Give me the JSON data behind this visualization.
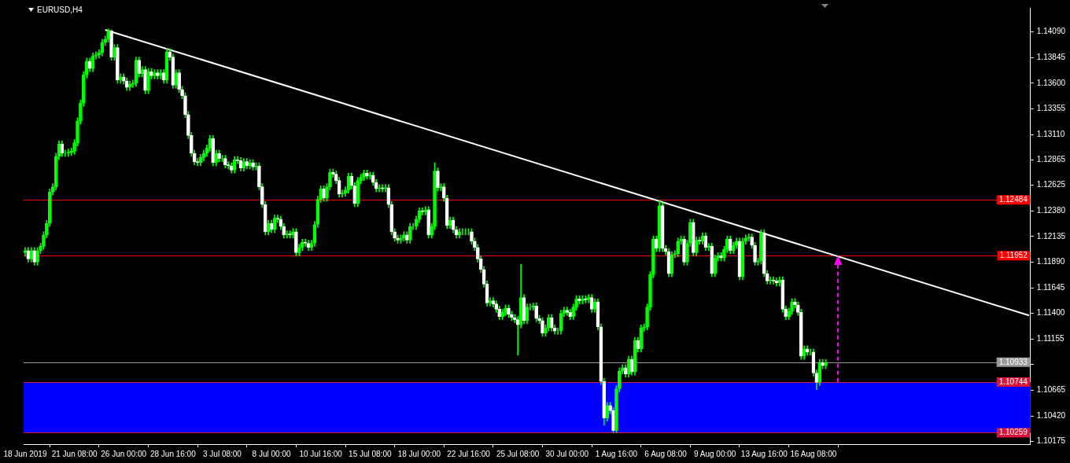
{
  "chart_data": {
    "type": "candlestick",
    "title": "EURUSD,H4",
    "color": "#00ff00",
    "categories": [
      "18 Jun 2019",
      null,
      null,
      null,
      null,
      null,
      null,
      null,
      null,
      null,
      null,
      null,
      null,
      null,
      null,
      null,
      "21 Jun 08:00",
      null,
      null,
      null,
      null,
      null,
      null,
      null,
      null,
      null,
      null,
      null,
      null,
      null,
      null,
      null,
      "26 Jun 00:00",
      null,
      null,
      null,
      null,
      null,
      null,
      null,
      null,
      null,
      null,
      null,
      null,
      null,
      null,
      null,
      "28 Jun 16:00",
      null,
      null,
      null,
      null,
      null,
      null,
      null,
      null,
      null,
      null,
      null,
      null,
      null,
      null,
      null,
      "3 Jul 08:00",
      null,
      null,
      null,
      null,
      null,
      null,
      null,
      null,
      null,
      null,
      null,
      null,
      null,
      null,
      null,
      "8 Jul 00:00",
      null,
      null,
      null,
      null,
      null,
      null,
      null,
      null,
      null,
      null,
      null,
      null,
      null,
      null,
      null,
      "10 Jul 16:00",
      null,
      null,
      null,
      null,
      null,
      null,
      null,
      null,
      null,
      null,
      null,
      null,
      null,
      null,
      null,
      "15 Jul 08:00",
      null,
      null,
      null,
      null,
      null,
      null,
      null,
      null,
      null,
      null,
      null,
      null,
      null,
      null,
      null,
      "18 Jul 00:00",
      null,
      null,
      null,
      null,
      null,
      null,
      null,
      null,
      null,
      null,
      null,
      null,
      null,
      null,
      null,
      "22 Jul 16:00",
      null,
      null,
      null,
      null,
      null,
      null,
      null,
      null,
      null,
      null,
      null,
      null,
      null,
      null,
      null,
      "25 Jul 08:00",
      null,
      null,
      null,
      null,
      null,
      null,
      null,
      null,
      null,
      null,
      null,
      null,
      null,
      null,
      null,
      "30 Jul 00:00",
      null,
      null,
      null,
      null,
      null,
      null,
      null,
      null,
      null,
      null,
      null,
      null,
      null,
      null,
      null,
      "1 Aug 16:00",
      null,
      null,
      null,
      null,
      null,
      null,
      null,
      null,
      null,
      null,
      null,
      null,
      null,
      null,
      null,
      "6 Aug 08:00",
      null,
      null,
      null,
      null,
      null,
      null,
      null,
      null,
      null,
      null,
      null,
      null,
      null,
      null,
      null,
      "9 Aug 00:00",
      null,
      null,
      null,
      null,
      null,
      null,
      null,
      null,
      null,
      null,
      null,
      null,
      null,
      null,
      null,
      "13 Aug 16:00",
      null,
      null,
      null,
      null,
      null,
      null,
      null,
      null,
      null,
      null,
      null,
      null,
      null,
      null,
      null,
      "16 Aug 08:00",
      null,
      null,
      null,
      null,
      null,
      null,
      null,
      null,
      null,
      null,
      null,
      null,
      null,
      null,
      null,
      null,
      null,
      null,
      null,
      null,
      null,
      null,
      null,
      null,
      null,
      null,
      null,
      null,
      null,
      null,
      null,
      null,
      null,
      null,
      null,
      null,
      null,
      null,
      null,
      null,
      null,
      null,
      null,
      null,
      null,
      null,
      null,
      null,
      null,
      null,
      null,
      null,
      null,
      null,
      null,
      null,
      null,
      null,
      null,
      null,
      null,
      null,
      null,
      null,
      null,
      null,
      null,
      null,
      null,
      null
    ],
    "ohlc": [
      [
        1.1198,
        1.1203,
        1.1195,
        1.12
      ],
      [
        1.12,
        1.1203,
        1.1189,
        1.1192
      ],
      [
        1.1192,
        1.1203,
        1.1189,
        1.12
      ],
      [
        1.12,
        1.1203,
        1.1186,
        1.1189
      ],
      [
        1.1189,
        1.1203,
        1.1186,
        1.12
      ],
      [
        1.12,
        1.1207,
        1.1197,
        1.1204
      ],
      [
        1.1204,
        1.1218,
        1.1201,
        1.1215
      ],
      [
        1.1215,
        1.1229,
        1.1212,
        1.1226
      ],
      [
        1.1226,
        1.1259,
        1.1223,
        1.1256
      ],
      [
        1.1256,
        1.1264,
        1.1253,
        1.1261
      ],
      [
        1.1261,
        1.1293,
        1.1258,
        1.129
      ],
      [
        1.129,
        1.1305,
        1.1287,
        1.1302
      ],
      [
        1.1302,
        1.1305,
        1.129,
        1.1293
      ],
      [
        1.1293,
        1.1296,
        1.129,
        1.1293
      ],
      [
        1.1293,
        1.1297,
        1.129,
        1.1294
      ],
      [
        1.1294,
        1.1298,
        1.1291,
        1.1295
      ],
      [
        1.1295,
        1.1306,
        1.1292,
        1.1303
      ],
      [
        1.1303,
        1.1327,
        1.13,
        1.1324
      ],
      [
        1.1324,
        1.1344,
        1.1321,
        1.1341
      ],
      [
        1.1341,
        1.1371,
        1.1338,
        1.1368
      ],
      [
        1.1368,
        1.1384,
        1.1365,
        1.1381
      ],
      [
        1.1381,
        1.1384,
        1.1371,
        1.1374
      ],
      [
        1.1374,
        1.1389,
        1.1371,
        1.1386
      ],
      [
        1.1386,
        1.139,
        1.1383,
        1.1387
      ],
      [
        1.1387,
        1.1392,
        1.1384,
        1.1389
      ],
      [
        1.1389,
        1.1402,
        1.1386,
        1.1399
      ],
      [
        1.1399,
        1.1405,
        1.1396,
        1.1402
      ],
      [
        1.1402,
        1.1412,
        1.1399,
        1.141
      ],
      [
        1.141,
        1.1411,
        1.1382,
        1.1385
      ],
      [
        1.1385,
        1.1397,
        1.1382,
        1.1394
      ],
      [
        1.1394,
        1.1397,
        1.136,
        1.1363
      ],
      [
        1.1363,
        1.1369,
        1.136,
        1.1366
      ],
      [
        1.1366,
        1.1369,
        1.1359,
        1.1362
      ],
      [
        1.1362,
        1.1365,
        1.1353,
        1.1356
      ],
      [
        1.1356,
        1.1362,
        1.1353,
        1.1359
      ],
      [
        1.1359,
        1.1363,
        1.1356,
        1.136
      ],
      [
        1.136,
        1.1385,
        1.1357,
        1.1382
      ],
      [
        1.1382,
        1.1385,
        1.1366,
        1.1369
      ],
      [
        1.1369,
        1.1376,
        1.1366,
        1.1373
      ],
      [
        1.1373,
        1.1376,
        1.135,
        1.1353
      ],
      [
        1.1353,
        1.1374,
        1.135,
        1.1371
      ],
      [
        1.1371,
        1.1374,
        1.1364,
        1.1367
      ],
      [
        1.1367,
        1.1373,
        1.1364,
        1.137
      ],
      [
        1.137,
        1.1373,
        1.1364,
        1.1367
      ],
      [
        1.1367,
        1.1373,
        1.1364,
        1.137
      ],
      [
        1.137,
        1.1373,
        1.136,
        1.1363
      ],
      [
        1.1363,
        1.1393,
        1.136,
        1.139
      ],
      [
        1.139,
        1.1393,
        1.1382,
        1.1385
      ],
      [
        1.1385,
        1.1388,
        1.1355,
        1.1358
      ],
      [
        1.1358,
        1.1373,
        1.1355,
        1.137
      ],
      [
        1.137,
        1.1373,
        1.1351,
        1.1354
      ],
      [
        1.1354,
        1.1357,
        1.1345,
        1.1348
      ],
      [
        1.1348,
        1.1351,
        1.1327,
        1.133
      ],
      [
        1.133,
        1.1333,
        1.1307,
        1.131
      ],
      [
        1.131,
        1.1313,
        1.129,
        1.1293
      ],
      [
        1.1293,
        1.1296,
        1.1282,
        1.1285
      ],
      [
        1.1285,
        1.1288,
        1.1281,
        1.1284
      ],
      [
        1.1284,
        1.1292,
        1.1281,
        1.1289
      ],
      [
        1.1289,
        1.1296,
        1.1286,
        1.1293
      ],
      [
        1.1293,
        1.1301,
        1.129,
        1.1298
      ],
      [
        1.1298,
        1.131,
        1.1295,
        1.1307
      ],
      [
        1.1307,
        1.131,
        1.1281,
        1.1284
      ],
      [
        1.1284,
        1.1296,
        1.1281,
        1.1293
      ],
      [
        1.1293,
        1.1296,
        1.1285,
        1.1288
      ],
      [
        1.1288,
        1.1291,
        1.1285,
        1.1288
      ],
      [
        1.1288,
        1.1291,
        1.1279,
        1.1282
      ],
      [
        1.1282,
        1.1285,
        1.1278,
        1.1281
      ],
      [
        1.1281,
        1.1284,
        1.1274,
        1.1277
      ],
      [
        1.1277,
        1.129,
        1.1274,
        1.1287
      ],
      [
        1.1287,
        1.129,
        1.1283,
        1.1286
      ],
      [
        1.1286,
        1.1289,
        1.1276,
        1.1279
      ],
      [
        1.1279,
        1.1288,
        1.1276,
        1.1285
      ],
      [
        1.1285,
        1.1288,
        1.1278,
        1.1281
      ],
      [
        1.1281,
        1.1287,
        1.1278,
        1.1284
      ],
      [
        1.1284,
        1.1287,
        1.1277,
        1.128
      ],
      [
        1.128,
        1.1284,
        1.1277,
        1.1281
      ],
      [
        1.1281,
        1.1284,
        1.1258,
        1.1261
      ],
      [
        1.1261,
        1.1264,
        1.1241,
        1.1244
      ],
      [
        1.1244,
        1.1247,
        1.1215,
        1.1218
      ],
      [
        1.1218,
        1.1229,
        1.1215,
        1.1226
      ],
      [
        1.1226,
        1.1229,
        1.1217,
        1.122
      ],
      [
        1.122,
        1.1234,
        1.1217,
        1.1231
      ],
      [
        1.1231,
        1.1234,
        1.1227,
        1.123
      ],
      [
        1.123,
        1.1233,
        1.122,
        1.1223
      ],
      [
        1.1223,
        1.1226,
        1.1212,
        1.1215
      ],
      [
        1.1215,
        1.1219,
        1.1212,
        1.1216
      ],
      [
        1.1216,
        1.1219,
        1.1212,
        1.1215
      ],
      [
        1.1215,
        1.1221,
        1.1212,
        1.1218
      ],
      [
        1.1218,
        1.1221,
        1.1195,
        1.1198
      ],
      [
        1.1198,
        1.1206,
        1.1195,
        1.1203
      ],
      [
        1.1203,
        1.1211,
        1.12,
        1.1208
      ],
      [
        1.1208,
        1.1211,
        1.1204,
        1.1207
      ],
      [
        1.1207,
        1.121,
        1.12,
        1.1203
      ],
      [
        1.1203,
        1.121,
        1.12,
        1.1207
      ],
      [
        1.1207,
        1.1228,
        1.1204,
        1.1225
      ],
      [
        1.1225,
        1.1252,
        1.1222,
        1.1249
      ],
      [
        1.1249,
        1.1262,
        1.1246,
        1.1259
      ],
      [
        1.1259,
        1.1262,
        1.1247,
        1.125
      ],
      [
        1.125,
        1.1264,
        1.1247,
        1.1261
      ],
      [
        1.1261,
        1.1278,
        1.1258,
        1.1275
      ],
      [
        1.1275,
        1.1278,
        1.127,
        1.1273
      ],
      [
        1.1273,
        1.1276,
        1.1264,
        1.1267
      ],
      [
        1.1267,
        1.127,
        1.1251,
        1.1254
      ],
      [
        1.1254,
        1.1258,
        1.1251,
        1.1255
      ],
      [
        1.1255,
        1.1261,
        1.1252,
        1.1258
      ],
      [
        1.1258,
        1.1274,
        1.1255,
        1.1271
      ],
      [
        1.1271,
        1.1274,
        1.1259,
        1.1262
      ],
      [
        1.1262,
        1.1265,
        1.1242,
        1.1245
      ],
      [
        1.1245,
        1.127,
        1.1242,
        1.1267
      ],
      [
        1.1267,
        1.1273,
        1.1264,
        1.127
      ],
      [
        1.127,
        1.1277,
        1.1267,
        1.1274
      ],
      [
        1.1274,
        1.1277,
        1.1268,
        1.1271
      ],
      [
        1.1271,
        1.1275,
        1.1268,
        1.1272
      ],
      [
        1.1272,
        1.1275,
        1.1262,
        1.1265
      ],
      [
        1.1265,
        1.1268,
        1.1256,
        1.1259
      ],
      [
        1.1259,
        1.1263,
        1.1256,
        1.126
      ],
      [
        1.126,
        1.1263,
        1.1256,
        1.1259
      ],
      [
        1.1259,
        1.1263,
        1.1256,
        1.126
      ],
      [
        1.126,
        1.1263,
        1.1241,
        1.1244
      ],
      [
        1.1244,
        1.1247,
        1.1215,
        1.1218
      ],
      [
        1.1218,
        1.1221,
        1.1209,
        1.1212
      ],
      [
        1.1212,
        1.1215,
        1.1207,
        1.121
      ],
      [
        1.121,
        1.1215,
        1.1207,
        1.1212
      ],
      [
        1.1212,
        1.1218,
        1.1209,
        1.1215
      ],
      [
        1.1215,
        1.1218,
        1.1207,
        1.121
      ],
      [
        1.121,
        1.1226,
        1.1207,
        1.1223
      ],
      [
        1.1223,
        1.1226,
        1.122,
        1.1223
      ],
      [
        1.1223,
        1.1233,
        1.122,
        1.123
      ],
      [
        1.123,
        1.1241,
        1.1227,
        1.1238
      ],
      [
        1.1238,
        1.1241,
        1.1234,
        1.1237
      ],
      [
        1.1237,
        1.1242,
        1.1234,
        1.1239
      ],
      [
        1.1239,
        1.1242,
        1.1212,
        1.1215
      ],
      [
        1.1215,
        1.1226,
        1.1212,
        1.1223
      ],
      [
        1.1223,
        1.1284,
        1.122,
        1.1276
      ],
      [
        1.1276,
        1.1279,
        1.1257,
        1.126
      ],
      [
        1.126,
        1.1264,
        1.1257,
        1.1261
      ],
      [
        1.1261,
        1.1264,
        1.1247,
        1.125
      ],
      [
        1.125,
        1.1253,
        1.1221,
        1.1224
      ],
      [
        1.1224,
        1.1232,
        1.1221,
        1.1229
      ],
      [
        1.1229,
        1.1232,
        1.1217,
        1.122
      ],
      [
        1.122,
        1.1223,
        1.1212,
        1.1215
      ],
      [
        1.1215,
        1.1221,
        1.1212,
        1.1218
      ],
      [
        1.1218,
        1.1221,
        1.1215,
        1.1218
      ],
      [
        1.1218,
        1.1221,
        1.1215,
        1.1218
      ],
      [
        1.1218,
        1.1221,
        1.1215,
        1.1218
      ],
      [
        1.1218,
        1.1221,
        1.1206,
        1.1209
      ],
      [
        1.1209,
        1.1212,
        1.12,
        1.1203
      ],
      [
        1.1203,
        1.1206,
        1.1189,
        1.1192
      ],
      [
        1.1192,
        1.1195,
        1.1179,
        1.1182
      ],
      [
        1.1182,
        1.1185,
        1.1165,
        1.1168
      ],
      [
        1.1168,
        1.1171,
        1.1147,
        1.115
      ],
      [
        1.115,
        1.1155,
        1.1147,
        1.1152
      ],
      [
        1.1152,
        1.1155,
        1.1146,
        1.1149
      ],
      [
        1.1149,
        1.1152,
        1.1141,
        1.1144
      ],
      [
        1.1144,
        1.1147,
        1.1134,
        1.1137
      ],
      [
        1.1137,
        1.1144,
        1.1134,
        1.1141
      ],
      [
        1.1141,
        1.1148,
        1.1138,
        1.1145
      ],
      [
        1.1145,
        1.1148,
        1.1136,
        1.1139
      ],
      [
        1.1139,
        1.1142,
        1.1133,
        1.1136
      ],
      [
        1.1136,
        1.1139,
        1.1131,
        1.1134
      ],
      [
        1.1134,
        1.1137,
        1.11,
        1.1129
      ],
      [
        1.1129,
        1.1187,
        1.1126,
        1.1155
      ],
      [
        1.1155,
        1.1158,
        1.113,
        1.1133
      ],
      [
        1.1133,
        1.1149,
        1.113,
        1.1146
      ],
      [
        1.1146,
        1.1149,
        1.1143,
        1.1146
      ],
      [
        1.1146,
        1.115,
        1.1143,
        1.1147
      ],
      [
        1.1147,
        1.115,
        1.1132,
        1.1135
      ],
      [
        1.1135,
        1.1138,
        1.113,
        1.1133
      ],
      [
        1.1133,
        1.1136,
        1.1118,
        1.1121
      ],
      [
        1.1121,
        1.1129,
        1.1118,
        1.1126
      ],
      [
        1.1126,
        1.1139,
        1.1123,
        1.1136
      ],
      [
        1.1136,
        1.1139,
        1.1123,
        1.1126
      ],
      [
        1.1126,
        1.1129,
        1.112,
        1.1123
      ],
      [
        1.1123,
        1.1126,
        1.112,
        1.1123
      ],
      [
        1.1123,
        1.1143,
        1.112,
        1.114
      ],
      [
        1.114,
        1.1146,
        1.1137,
        1.1143
      ],
      [
        1.1143,
        1.1146,
        1.1138,
        1.1141
      ],
      [
        1.1141,
        1.1144,
        1.1134,
        1.1137
      ],
      [
        1.1137,
        1.1149,
        1.1134,
        1.1146
      ],
      [
        1.1146,
        1.1157,
        1.1143,
        1.1154
      ],
      [
        1.1154,
        1.1157,
        1.1149,
        1.1152
      ],
      [
        1.1152,
        1.1157,
        1.1149,
        1.1154
      ],
      [
        1.1154,
        1.1157,
        1.115,
        1.1153
      ],
      [
        1.1153,
        1.1158,
        1.115,
        1.1155
      ],
      [
        1.1155,
        1.1158,
        1.1141,
        1.1144
      ],
      [
        1.1144,
        1.1154,
        1.1141,
        1.1151
      ],
      [
        1.1151,
        1.1154,
        1.1124,
        1.1127
      ],
      [
        1.1127,
        1.113,
        1.1072,
        1.1075
      ],
      [
        1.1075,
        1.1078,
        1.1033,
        1.104
      ],
      [
        1.104,
        1.1055,
        1.1037,
        1.1052
      ],
      [
        1.1052,
        1.1055,
        1.1044,
        1.1047
      ],
      [
        1.1047,
        1.105,
        1.1026,
        1.1028
      ],
      [
        1.1028,
        1.1071,
        1.1026,
        1.1068
      ],
      [
        1.1068,
        1.1088,
        1.1065,
        1.1085
      ],
      [
        1.1085,
        1.1091,
        1.1082,
        1.1088
      ],
      [
        1.1088,
        1.1091,
        1.1079,
        1.1082
      ],
      [
        1.1082,
        1.1099,
        1.1079,
        1.1096
      ],
      [
        1.1096,
        1.1099,
        1.1081,
        1.1084
      ],
      [
        1.1084,
        1.1117,
        1.1081,
        1.1114
      ],
      [
        1.1114,
        1.1117,
        1.1103,
        1.1106
      ],
      [
        1.1106,
        1.1129,
        1.1103,
        1.1126
      ],
      [
        1.1126,
        1.113,
        1.1123,
        1.1127
      ],
      [
        1.1127,
        1.1149,
        1.1124,
        1.1146
      ],
      [
        1.1146,
        1.118,
        1.1143,
        1.1177
      ],
      [
        1.1177,
        1.1214,
        1.1174,
        1.1211
      ],
      [
        1.1211,
        1.1214,
        1.1199,
        1.1202
      ],
      [
        1.1202,
        1.1248,
        1.1199,
        1.1243
      ],
      [
        1.1243,
        1.1246,
        1.1199,
        1.1202
      ],
      [
        1.1202,
        1.1205,
        1.1196,
        1.1199
      ],
      [
        1.1199,
        1.1202,
        1.1175,
        1.1178
      ],
      [
        1.1178,
        1.1199,
        1.1175,
        1.1196
      ],
      [
        1.1196,
        1.12,
        1.1193,
        1.1197
      ],
      [
        1.1197,
        1.1212,
        1.1194,
        1.1209
      ],
      [
        1.1209,
        1.1214,
        1.1206,
        1.1211
      ],
      [
        1.1211,
        1.1214,
        1.1186,
        1.1189
      ],
      [
        1.1189,
        1.121,
        1.1186,
        1.1207
      ],
      [
        1.1207,
        1.123,
        1.1204,
        1.1227
      ],
      [
        1.1227,
        1.123,
        1.1195,
        1.1198
      ],
      [
        1.1198,
        1.1213,
        1.1195,
        1.121
      ],
      [
        1.121,
        1.1213,
        1.1206,
        1.1209
      ],
      [
        1.1209,
        1.1217,
        1.1206,
        1.1214
      ],
      [
        1.1214,
        1.1217,
        1.12,
        1.1203
      ],
      [
        1.1203,
        1.1207,
        1.12,
        1.1204
      ],
      [
        1.1204,
        1.1207,
        1.1175,
        1.1178
      ],
      [
        1.1178,
        1.1196,
        1.1175,
        1.1193
      ],
      [
        1.1193,
        1.1198,
        1.119,
        1.1195
      ],
      [
        1.1195,
        1.1198,
        1.119,
        1.1193
      ],
      [
        1.1193,
        1.1204,
        1.119,
        1.1201
      ],
      [
        1.1201,
        1.1214,
        1.1198,
        1.1211
      ],
      [
        1.1211,
        1.1214,
        1.1197,
        1.12
      ],
      [
        1.12,
        1.1208,
        1.1197,
        1.1205
      ],
      [
        1.1205,
        1.1212,
        1.1202,
        1.1209
      ],
      [
        1.1209,
        1.1212,
        1.1172,
        1.1175
      ],
      [
        1.1175,
        1.1212,
        1.1172,
        1.1209
      ],
      [
        1.1209,
        1.1215,
        1.1206,
        1.1212
      ],
      [
        1.1212,
        1.1216,
        1.1209,
        1.1213
      ],
      [
        1.1213,
        1.1216,
        1.1202,
        1.1205
      ],
      [
        1.1205,
        1.1208,
        1.1186,
        1.1189
      ],
      [
        1.1189,
        1.1193,
        1.1186,
        1.119
      ],
      [
        1.119,
        1.122,
        1.1187,
        1.1217
      ],
      [
        1.1217,
        1.122,
        1.1175,
        1.1178
      ],
      [
        1.1178,
        1.1181,
        1.1168,
        1.1171
      ],
      [
        1.1171,
        1.1175,
        1.1168,
        1.1172
      ],
      [
        1.1172,
        1.1175,
        1.1168,
        1.1171
      ],
      [
        1.1171,
        1.1174,
        1.1166,
        1.1169
      ],
      [
        1.1169,
        1.1175,
        1.1166,
        1.1172
      ],
      [
        1.1172,
        1.1175,
        1.1141,
        1.1144
      ],
      [
        1.1144,
        1.1147,
        1.1134,
        1.1137
      ],
      [
        1.1137,
        1.1145,
        1.1134,
        1.1142
      ],
      [
        1.1142,
        1.1154,
        1.1139,
        1.1151
      ],
      [
        1.1151,
        1.1154,
        1.1145,
        1.1148
      ],
      [
        1.1148,
        1.1151,
        1.1138,
        1.1141
      ],
      [
        1.1141,
        1.1144,
        1.1096,
        1.1099
      ],
      [
        1.1099,
        1.1109,
        1.1096,
        1.1106
      ],
      [
        1.1106,
        1.1109,
        1.11,
        1.1103
      ],
      [
        1.1103,
        1.1106,
        1.11,
        1.1103
      ],
      [
        1.1103,
        1.1106,
        1.108,
        1.1083
      ],
      [
        1.1083,
        1.1086,
        1.1067,
        1.1074
      ],
      [
        1.1074,
        1.1096,
        1.1071,
        1.1093
      ],
      [
        1.1093,
        1.1096,
        1.1087,
        1.109
      ],
      [
        1.109,
        1.1096,
        1.1087,
        1.1093
      ],
      null,
      null,
      null,
      null,
      null,
      null,
      null,
      null,
      null,
      null,
      null,
      null,
      null,
      null,
      null,
      null,
      null,
      null,
      null,
      null,
      null,
      null,
      null,
      null,
      null,
      null,
      null,
      null,
      null,
      null,
      null,
      null,
      null,
      null,
      null,
      null,
      null,
      null,
      null,
      null,
      null,
      null,
      null,
      null,
      null,
      null,
      null,
      null,
      null,
      null,
      null,
      null,
      null,
      null,
      null,
      null,
      null,
      null,
      null,
      null,
      null,
      null,
      null,
      null,
      null,
      null
    ],
    "colors": [
      "#00ff00",
      "#ffffff",
      "#00ff00",
      "#ffffff",
      "#00ff00",
      "#00ff00",
      "#00ff00",
      "#00ff00",
      "#00ff00",
      "#00ff00",
      "#00ff00",
      "#00ff00",
      "#ffffff",
      "#00ff00",
      "#00ff00",
      "#00ff00",
      "#00ff00",
      "#00ff00",
      "#00ff00",
      "#00ff00",
      "#00ff00",
      "#ffffff",
      "#00ff00",
      "#00ff00",
      "#00ff00",
      "#00ff00",
      "#00ff00",
      "#00ff00",
      "#ffffff",
      "#00ff00",
      "#ffffff",
      "#00ff00",
      "#ffffff",
      "#ffffff",
      "#00ff00",
      "#00ff00",
      "#00ff00",
      "#ffffff",
      "#00ff00",
      "#ffffff",
      "#00ff00",
      "#ffffff",
      "#00ff00",
      "#ffffff",
      "#00ff00",
      "#ffffff",
      "#00ff00",
      "#ffffff",
      "#ffffff",
      "#00ff00",
      "#ffffff",
      "#ffffff",
      "#ffffff",
      "#ffffff",
      "#ffffff",
      "#ffffff",
      "#ffffff",
      "#00ff00",
      "#00ff00",
      "#00ff00",
      "#00ff00",
      "#ffffff",
      "#00ff00",
      "#ffffff",
      "#00ff00",
      "#ffffff",
      "#ffffff",
      "#ffffff",
      "#00ff00",
      "#ffffff",
      "#ffffff",
      "#00ff00",
      "#ffffff",
      "#00ff00",
      "#ffffff",
      "#00ff00",
      "#ffffff",
      "#ffffff",
      "#ffffff",
      "#00ff00",
      "#ffffff",
      "#00ff00",
      "#ffffff",
      "#ffffff",
      "#ffffff",
      "#00ff00",
      "#ffffff",
      "#00ff00",
      "#ffffff",
      "#00ff00",
      "#00ff00",
      "#ffffff",
      "#ffffff",
      "#00ff00",
      "#00ff00",
      "#00ff00",
      "#00ff00",
      "#ffffff",
      "#00ff00",
      "#00ff00",
      "#ffffff",
      "#ffffff",
      "#ffffff",
      "#00ff00",
      "#00ff00",
      "#00ff00",
      "#ffffff",
      "#ffffff",
      "#00ff00",
      "#00ff00",
      "#00ff00",
      "#ffffff",
      "#00ff00",
      "#ffffff",
      "#ffffff",
      "#00ff00",
      "#ffffff",
      "#00ff00",
      "#ffffff",
      "#ffffff",
      "#ffffff",
      "#ffffff",
      "#00ff00",
      "#00ff00",
      "#ffffff",
      "#00ff00",
      "#00ff00",
      "#00ff00",
      "#00ff00",
      "#ffffff",
      "#00ff00",
      "#ffffff",
      "#00ff00",
      "#00ff00",
      "#ffffff",
      "#00ff00",
      "#ffffff",
      "#ffffff",
      "#00ff00",
      "#ffffff",
      "#ffffff",
      "#00ff00",
      "#00ff00",
      "#00ff00",
      "#00ff00",
      "#ffffff",
      "#ffffff",
      "#ffffff",
      "#ffffff",
      "#ffffff",
      "#ffffff",
      "#00ff00",
      "#ffffff",
      "#ffffff",
      "#ffffff",
      "#00ff00",
      "#00ff00",
      "#ffffff",
      "#ffffff",
      "#ffffff",
      "#ffffff",
      "#00ff00",
      "#ffffff",
      "#00ff00",
      "#00ff00",
      "#00ff00",
      "#ffffff",
      "#ffffff",
      "#ffffff",
      "#00ff00",
      "#00ff00",
      "#ffffff",
      "#ffffff",
      "#00ff00",
      "#00ff00",
      "#00ff00",
      "#ffffff",
      "#ffffff",
      "#00ff00",
      "#00ff00",
      "#ffffff",
      "#00ff00",
      "#ffffff",
      "#00ff00",
      "#ffffff",
      "#00ff00",
      "#ffffff",
      "#ffffff",
      "#ffffff",
      "#00ff00",
      "#ffffff",
      "#ffffff",
      "#00ff00",
      "#00ff00",
      "#00ff00",
      "#ffffff",
      "#00ff00",
      "#ffffff",
      "#00ff00",
      "#ffffff",
      "#00ff00",
      "#00ff00",
      "#00ff00",
      "#00ff00",
      "#00ff00",
      "#ffffff",
      "#00ff00",
      "#ffffff",
      "#ffffff",
      "#ffffff",
      "#00ff00",
      "#00ff00",
      "#00ff00",
      "#00ff00",
      "#ffffff",
      "#00ff00",
      "#00ff00",
      "#ffffff",
      "#00ff00",
      "#ffffff",
      "#00ff00",
      "#ffffff",
      "#00ff00",
      "#ffffff",
      "#00ff00",
      "#00ff00",
      "#ffffff",
      "#00ff00",
      "#00ff00",
      "#ffffff",
      "#00ff00",
      "#00ff00",
      "#ffffff",
      "#00ff00",
      "#00ff00",
      "#00ff00",
      "#ffffff",
      "#ffffff",
      "#00ff00",
      "#00ff00",
      "#ffffff",
      "#ffffff",
      "#00ff00",
      "#ffffff",
      "#ffffff",
      "#00ff00",
      "#ffffff",
      "#ffffff",
      "#00ff00",
      "#00ff00",
      "#ffffff",
      "#ffffff",
      "#ffffff",
      "#00ff00",
      "#ffffff",
      "#00ff00",
      "#ffffff",
      "#ffffff",
      "#00ff00",
      "#ffffff",
      "#00ff00",
      null,
      null,
      null,
      null,
      null,
      null,
      null,
      null,
      null,
      null,
      null,
      null,
      null,
      null,
      null,
      null,
      null,
      null,
      null,
      null,
      null,
      null,
      null,
      null,
      null,
      null,
      null,
      null,
      null,
      null,
      null,
      null,
      null,
      null,
      null,
      null,
      null,
      null,
      null,
      null,
      null,
      null,
      null,
      null,
      null,
      null,
      null,
      null,
      null,
      null,
      null,
      null,
      null,
      null,
      null,
      null,
      null,
      null,
      null,
      null,
      null,
      null,
      null,
      null,
      null,
      null
    ],
    "series": [
      {
        "type": "line",
        "color": "#ffffff",
        "values": [
          null,
          null,
          null,
          null,
          null,
          null,
          null,
          null,
          null,
          null,
          null,
          null,
          null,
          null,
          null,
          null,
          null,
          null,
          null,
          null,
          null,
          null,
          null,
          null,
          null,
          null,
          1.1411,
          null,
          null,
          null,
          null,
          null,
          null,
          null,
          null,
          null,
          null,
          null,
          null,
          null,
          null,
          null,
          null,
          null,
          null,
          null,
          null,
          null,
          null,
          null,
          null,
          null,
          null,
          null,
          null,
          null,
          null,
          null,
          null,
          null,
          null,
          null,
          null,
          null,
          null,
          null,
          null,
          null,
          null,
          null,
          null,
          null,
          null,
          null,
          null,
          null,
          null,
          null,
          null,
          null,
          null,
          null,
          null,
          null,
          null,
          null,
          null,
          null,
          null,
          null,
          null,
          null,
          null,
          null,
          null,
          null,
          null,
          null,
          null,
          null,
          null,
          null,
          null,
          null,
          null,
          null,
          null,
          null,
          null,
          null,
          null,
          null,
          null,
          null,
          null,
          null,
          null,
          null,
          null,
          null,
          null,
          null,
          null,
          null,
          null,
          null,
          null,
          null,
          null,
          null,
          null,
          null,
          null,
          null,
          null,
          null,
          null,
          null,
          null,
          null,
          null,
          null,
          null,
          null,
          null,
          null,
          null,
          null,
          null,
          null,
          null,
          null,
          null,
          null,
          null,
          null,
          null,
          null,
          null,
          null,
          null,
          null,
          null,
          null,
          null,
          null,
          null,
          null,
          null,
          null,
          null,
          null,
          null,
          null,
          null,
          null,
          null,
          null,
          null,
          null,
          null,
          null,
          null,
          null,
          null,
          null,
          null,
          null,
          null,
          null,
          null,
          null,
          null,
          null,
          null,
          null,
          null,
          null,
          null,
          null,
          null,
          null,
          null,
          null,
          null,
          null,
          null,
          null,
          null,
          null,
          null,
          null,
          null,
          null,
          null,
          null,
          null,
          null,
          null,
          null,
          null,
          null,
          null,
          null,
          null,
          null,
          null,
          null,
          null,
          null,
          null,
          null,
          null,
          null,
          null,
          null,
          null,
          null,
          null,
          null,
          null,
          null,
          null,
          null,
          null,
          null,
          null,
          null,
          null,
          null,
          null,
          null,
          null,
          null,
          null,
          null,
          null,
          null,
          null,
          null,
          null,
          null,
          null,
          null,
          null,
          null,
          null,
          null,
          null,
          null,
          null,
          null,
          null,
          null,
          null,
          null,
          null,
          null,
          null,
          null,
          null,
          null,
          null,
          null,
          null,
          null,
          null,
          null,
          null,
          null,
          null,
          null,
          null,
          null,
          null,
          null,
          null,
          null,
          null,
          null,
          null,
          null,
          null,
          null,
          null,
          null,
          null,
          null,
          null,
          null,
          null,
          null,
          null,
          null,
          null,
          null,
          null,
          null,
          null,
          null,
          null,
          null,
          null,
          null,
          null,
          null,
          1.1138
        ]
      }
    ],
    "ylim": [
      1.1015,
      1.1432
    ],
    "yticks": [
      {
        "value": 1.1409,
        "label": "1.14090"
      },
      {
        "value": 1.13845,
        "label": "1.13845"
      },
      {
        "value": 1.136,
        "label": "1.13600"
      },
      {
        "value": 1.13355,
        "label": "1.13355"
      },
      {
        "value": 1.1311,
        "label": "1.13110"
      },
      {
        "value": 1.12865,
        "label": "1.12865"
      },
      {
        "value": 1.12625,
        "label": "1.12625"
      },
      {
        "value": 1.1238,
        "label": "1.12380"
      },
      {
        "value": 1.12135,
        "label": "1.12135"
      },
      {
        "value": 1.1189,
        "label": "1.11890"
      },
      {
        "value": 1.11645,
        "label": "1.11645"
      },
      {
        "value": 1.114,
        "label": "1.11400"
      },
      {
        "value": 1.11155,
        "label": "1.11155"
      },
      {
        "value": 1.1091,
        "label": null
      },
      {
        "value": 1.10665,
        "label": "1.10665"
      },
      {
        "value": 1.1042,
        "label": "1.10420"
      },
      {
        "value": 1.10175,
        "label": "1.10175"
      }
    ],
    "ref_lines": [
      {
        "axis": "y",
        "value": 1.12484,
        "label": "1.12484",
        "color": "#ff0000"
      },
      {
        "axis": "y",
        "value": 1.11952,
        "label": "1.11952",
        "color": "#ff0000"
      },
      {
        "axis": "y",
        "value": 1.10933,
        "label": "1.10933",
        "color": "#9a9a9a"
      },
      {
        "axis": "y",
        "value": 1.10744,
        "label": "1.10744",
        "color": "#dc143c"
      },
      {
        "axis": "y",
        "value": 1.10259,
        "label": "1.10259",
        "color": "#dc143c"
      }
    ],
    "bands": [
      {
        "axis": "y",
        "from": 1.10259,
        "to": 1.10744,
        "color": "#0000ff"
      }
    ],
    "marker": "none",
    "grid": false,
    "legend": false
  }
}
